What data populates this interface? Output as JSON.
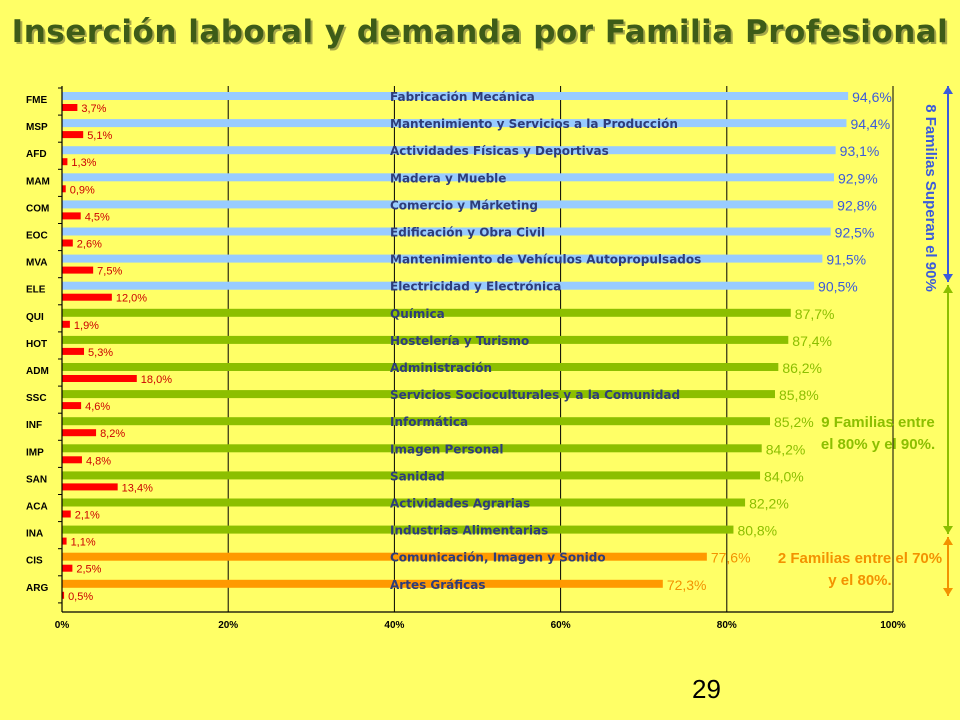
{
  "title": "Inserción laboral y demanda por Familia Profesional",
  "page_number": "29",
  "colors": {
    "background": "#FFFF66",
    "blue_bar": "#99CCFF",
    "green_bar": "#8CBF00",
    "orange_bar": "#FF9900",
    "red_bar": "#FF0000",
    "blue_group": "#3B5BDB",
    "green_group": "#8CBF00",
    "orange_group": "#F39200"
  },
  "annotations": [
    {
      "text": "8 Familias Superan el 90%",
      "color": "#3B5BDB"
    },
    {
      "text": "9 Familias entre el 80% y el 90%.",
      "color": "#8CBF00"
    },
    {
      "text": "2 Familias entre el 70% y el 80%.",
      "color": "#F39200"
    }
  ],
  "chart_data": {
    "type": "bar",
    "orientation": "horizontal",
    "categories": [
      "FME",
      "MSP",
      "AFD",
      "MAM",
      "COM",
      "EOC",
      "MVA",
      "ELE",
      "QUI",
      "HOT",
      "ADM",
      "SSC",
      "INF",
      "IMP",
      "SAN",
      "ACA",
      "INA",
      "CIS",
      "ARG"
    ],
    "family_names": [
      "Fabricación Mecánica",
      "Mantenimiento y Servicios a la Producción",
      "Actividades Físicas y Deportivas",
      "Madera y Mueble",
      "Comercio y Márketing",
      "Edificación y Obra Civil",
      "Mantenimiento de Vehículos Autopropulsados",
      "Electricidad y Electrónica",
      "Química",
      "Hostelería y Turismo",
      "Administración",
      "Servicios Socioculturales y a la Comunidad",
      "Informática",
      "Imagen Personal",
      "Sanidad",
      "Actividades Agrarias",
      "Industrias Alimentarias",
      "Comunicación, Imagen y Sonido",
      "Artes Gráficas"
    ],
    "series": [
      {
        "values": [
          94.6,
          94.4,
          93.1,
          92.9,
          92.8,
          92.5,
          91.5,
          90.5,
          87.7,
          87.4,
          86.2,
          85.8,
          85.2,
          84.2,
          84.0,
          82.2,
          80.8,
          77.6,
          72.3
        ],
        "labels": [
          "94,6%",
          "94,4%",
          "93,1%",
          "92,9%",
          "92,8%",
          "92,5%",
          "91,5%",
          "90,5%",
          "87,7%",
          "87,4%",
          "86,2%",
          "85,8%",
          "85,2%",
          "84,2%",
          "84,0%",
          "82,2%",
          "80,8%",
          "77,6%",
          "72,3%"
        ]
      },
      {
        "values": [
          3.7,
          5.1,
          1.3,
          0.9,
          4.5,
          2.6,
          7.5,
          12.0,
          1.9,
          5.3,
          18.0,
          4.6,
          8.2,
          4.8,
          13.4,
          2.1,
          1.1,
          2.5,
          0.5
        ],
        "labels": [
          "3,7%",
          "5,1%",
          "1,3%",
          "0,9%",
          "4,5%",
          "2,6%",
          "7,5%",
          "12,0%",
          "1,9%",
          "5,3%",
          "18,0%",
          "4,6%",
          "8,2%",
          "4,8%",
          "13,4%",
          "2,1%",
          "1,1%",
          "2,5%",
          "0,5%"
        ]
      }
    ],
    "x_ticks": [
      "0%",
      "20%",
      "40%",
      "60%",
      "80%",
      "100%"
    ],
    "xlim": [
      0,
      100
    ],
    "red_bar_scale": 0.5,
    "grid": true
  }
}
